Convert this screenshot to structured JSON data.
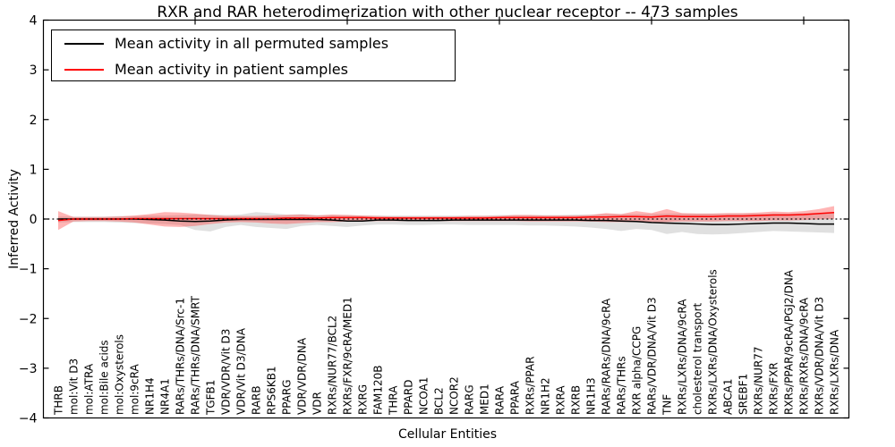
{
  "legend": {
    "position": "upper left",
    "items": [
      {
        "label": "Mean activity in all permuted samples",
        "color": "#000000"
      },
      {
        "label": "Mean activity in patient samples",
        "color": "#ff0000"
      }
    ]
  },
  "chart_data": {
    "type": "line",
    "title": "RXR and RAR heterodimerization with other nuclear receptor -- 473 samples",
    "xlabel": "Cellular Entities",
    "ylabel": "Inferred Activity",
    "ylim": [
      -4,
      4
    ],
    "yticks": [
      -4,
      -3,
      -2,
      -1,
      0,
      1,
      2,
      3,
      4
    ],
    "top_tick_positions": [
      10,
      20,
      30,
      40,
      50
    ],
    "grid": false,
    "zero_line": {
      "style": "dotted",
      "color": "#000000",
      "y": 0
    },
    "colors": {
      "permuted_line": "#000000",
      "patient_line": "#ff0000",
      "permuted_band": "#999999",
      "patient_band": "#ff2a2a"
    },
    "categories": [
      "THRB",
      "mol:Vit D3",
      "mol:ATRA",
      "mol:Bile acids",
      "mol:Oxysterols",
      "mol:9cRA",
      "NR1H4",
      "NR4A1",
      "RARs/THRs/DNA/Src-1",
      "RARs/THRs/DNA/SMRT",
      "TGFB1",
      "VDR/VDR/Vit D3",
      "VDR/Vit D3/DNA",
      "RARB",
      "RPS6KB1",
      "PPARG",
      "VDR/VDR/DNA",
      "VDR",
      "RXRs/NUR77/BCL2",
      "RXRs/FXR/9cRA/MED1",
      "RXRG",
      "FAM120B",
      "THRA",
      "PPARD",
      "NCOA1",
      "BCL2",
      "NCOR2",
      "RARG",
      "MED1",
      "RARA",
      "PPARA",
      "RXRs/PPAR",
      "NR1H2",
      "RXRA",
      "RXRB",
      "NR1H3",
      "RARs/RARs/DNA/9cRA",
      "RARs/THRs",
      "RXR alpha/CCPG",
      "RARs/VDR/DNA/Vit D3",
      "TNF",
      "RXRs/LXRs/DNA/9cRA",
      "cholesterol transport",
      "RXRs/LXRs/DNA/Oxysterols",
      "ABCA1",
      "SREBF1",
      "RXRs/NUR77",
      "RXRs/FXR",
      "RXRs/PPAR/9cRA/PGJ2/DNA",
      "RXRs/RXRs/DNA/9cRA",
      "RXRs/VDR/DNA/Vit D3",
      "RXRs/LXRs/DNA"
    ],
    "series": [
      {
        "name": "Mean activity in all permuted samples",
        "mean": [
          0,
          0,
          0,
          0,
          0,
          0,
          -0.01,
          -0.02,
          -0.04,
          -0.05,
          -0.04,
          -0.02,
          -0.01,
          -0.01,
          -0.01,
          -0.01,
          -0.01,
          -0.01,
          -0.02,
          -0.04,
          -0.04,
          -0.02,
          -0.02,
          -0.03,
          -0.03,
          -0.03,
          -0.02,
          -0.02,
          -0.02,
          -0.02,
          -0.02,
          -0.02,
          -0.02,
          -0.02,
          -0.02,
          -0.03,
          -0.03,
          -0.04,
          -0.05,
          -0.07,
          -0.08,
          -0.09,
          -0.1,
          -0.11,
          -0.11,
          -0.1,
          -0.09,
          -0.08,
          -0.08,
          -0.09,
          -0.1,
          -0.1
        ],
        "band_upper": [
          0.05,
          0.05,
          0.05,
          0.05,
          0.06,
          0.06,
          0.07,
          0.07,
          0.08,
          0.09,
          0.09,
          0.08,
          0.09,
          0.14,
          0.12,
          0.09,
          0.1,
          0.08,
          0.08,
          0.08,
          0.07,
          0.07,
          0.07,
          0.07,
          0.07,
          0.07,
          0.07,
          0.07,
          0.07,
          0.08,
          0.08,
          0.08,
          0.08,
          0.08,
          0.09,
          0.09,
          0.1,
          0.1,
          0.1,
          0.1,
          0.11,
          0.11,
          0.11,
          0.11,
          0.11,
          0.11,
          0.11,
          0.11,
          0.11,
          0.12,
          0.12,
          0.12
        ],
        "band_lower": [
          -0.07,
          -0.06,
          -0.06,
          -0.06,
          -0.07,
          -0.08,
          -0.09,
          -0.1,
          -0.12,
          -0.22,
          -0.25,
          -0.16,
          -0.12,
          -0.16,
          -0.18,
          -0.2,
          -0.14,
          -0.12,
          -0.14,
          -0.16,
          -0.13,
          -0.11,
          -0.11,
          -0.12,
          -0.12,
          -0.11,
          -0.11,
          -0.12,
          -0.12,
          -0.12,
          -0.12,
          -0.13,
          -0.13,
          -0.14,
          -0.15,
          -0.17,
          -0.2,
          -0.24,
          -0.2,
          -0.22,
          -0.3,
          -0.26,
          -0.3,
          -0.31,
          -0.3,
          -0.28,
          -0.26,
          -0.24,
          -0.25,
          -0.26,
          -0.27,
          -0.28
        ]
      },
      {
        "name": "Mean activity in patient samples",
        "mean": [
          -0.03,
          0,
          0,
          0,
          0,
          0.01,
          0.01,
          0.01,
          0.01,
          0.01,
          0.01,
          0.01,
          0.01,
          0.01,
          0.01,
          0.02,
          0.02,
          0.02,
          0.03,
          0.03,
          0.03,
          0.02,
          0.02,
          0.02,
          0.02,
          0.02,
          0.02,
          0.02,
          0.02,
          0.03,
          0.03,
          0.03,
          0.03,
          0.03,
          0.03,
          0.04,
          0.04,
          0.05,
          0.05,
          0.04,
          0.06,
          0.05,
          0.05,
          0.05,
          0.06,
          0.06,
          0.07,
          0.08,
          0.08,
          0.09,
          0.11,
          0.13
        ],
        "band_upper": [
          0.16,
          0.04,
          0.04,
          0.04,
          0.05,
          0.07,
          0.1,
          0.14,
          0.13,
          0.11,
          0.08,
          0.06,
          0.06,
          0.06,
          0.07,
          0.08,
          0.09,
          0.07,
          0.09,
          0.08,
          0.07,
          0.06,
          0.05,
          0.05,
          0.05,
          0.05,
          0.05,
          0.06,
          0.06,
          0.06,
          0.08,
          0.08,
          0.07,
          0.07,
          0.07,
          0.08,
          0.12,
          0.1,
          0.16,
          0.12,
          0.2,
          0.12,
          0.11,
          0.11,
          0.12,
          0.12,
          0.13,
          0.15,
          0.14,
          0.16,
          0.2,
          0.26
        ],
        "band_lower": [
          -0.22,
          -0.05,
          -0.04,
          -0.04,
          -0.05,
          -0.07,
          -0.11,
          -0.15,
          -0.16,
          -0.14,
          -0.1,
          -0.07,
          -0.06,
          -0.07,
          -0.09,
          -0.1,
          -0.08,
          -0.06,
          -0.06,
          -0.05,
          -0.05,
          -0.04,
          -0.04,
          -0.04,
          -0.04,
          -0.04,
          -0.04,
          -0.04,
          -0.04,
          -0.04,
          -0.04,
          -0.05,
          -0.05,
          -0.05,
          -0.05,
          -0.05,
          -0.06,
          -0.06,
          -0.06,
          -0.06,
          -0.06,
          -0.05,
          -0.05,
          -0.05,
          -0.04,
          -0.04,
          -0.04,
          -0.03,
          -0.03,
          -0.02,
          -0.01,
          0.0
        ]
      }
    ]
  }
}
